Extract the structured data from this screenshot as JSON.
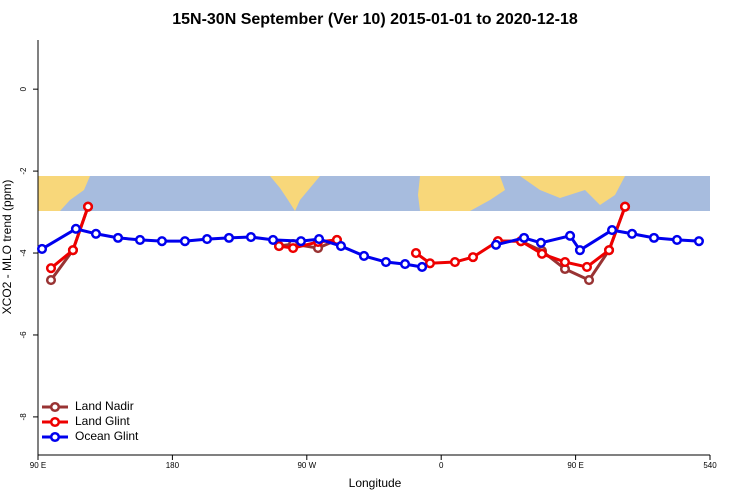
{
  "chart_data": {
    "type": "line",
    "title": "15N-30N September (Ver 10)   2015-01-01 to 2020-12-18",
    "x_label": "Longitude",
    "y_label": "XCO2 - MLO trend (ppm)",
    "xlim": [
      90,
      540
    ],
    "xticks": [
      {
        "value": 90,
        "label": "90 E"
      },
      180,
      {
        "value": 270,
        "label": "90 W"
      },
      {
        "value": 360,
        "label": "0"
      },
      {
        "value": 450,
        "label": "90 E"
      },
      540
    ],
    "ylim": [
      -8.93,
      1.2
    ],
    "yticks": [
      0,
      -2,
      -4,
      -6,
      -8
    ],
    "legend": "bottom-left",
    "series": [
      {
        "name": "Land Nadir",
        "color": "#993333",
        "x": [
          98.7,
          113.4,
          123.5,
          200,
          251.4,
          260.8,
          277.5,
          290.2,
          380,
          398,
          413.4,
          427.5,
          442.9,
          459,
          472.4,
          483.1
        ],
        "values": [
          -4.66,
          -3.93,
          -2.87,
          null,
          -3.83,
          -3.78,
          -3.88,
          -3.68,
          null,
          -3.71,
          -3.71,
          -3.95,
          -4.39,
          -4.66,
          -3.93,
          -2.87
        ]
      },
      {
        "name": "Land Glint",
        "color": "#ee0000",
        "x": [
          98.7,
          113.4,
          123.5,
          200,
          251.4,
          260.8,
          277.5,
          290.2,
          320,
          343.1,
          352.5,
          369.2,
          381.3,
          398,
          413.4,
          427.5,
          442.9,
          457.6,
          472.4,
          483.1
        ],
        "values": [
          -4.37,
          -3.93,
          -2.87,
          null,
          -3.83,
          -3.88,
          -3.73,
          -3.68,
          null,
          -4.0,
          -4.25,
          -4.22,
          -4.1,
          -3.71,
          -3.71,
          -4.02,
          -4.22,
          -4.34,
          -3.93,
          -2.87
        ]
      },
      {
        "name": "Ocean Glint",
        "color": "#0000ee",
        "x": [
          92.7,
          115.4,
          128.8,
          143.6,
          158.3,
          173,
          188.4,
          203.2,
          217.9,
          232.6,
          247.4,
          266.1,
          278.2,
          292.9,
          308.3,
          323,
          335.8,
          347.2,
          370,
          396.7,
          415.5,
          426.8,
          446.3,
          452.9,
          474.4,
          487.8,
          502.5,
          517.9,
          532.6
        ],
        "values": [
          -3.9,
          -3.41,
          -3.53,
          -3.63,
          -3.68,
          -3.71,
          -3.71,
          -3.66,
          -3.63,
          -3.61,
          -3.68,
          -3.71,
          -3.66,
          -3.83,
          -4.07,
          -4.22,
          -4.27,
          -4.34,
          null,
          -3.8,
          -3.63,
          -3.75,
          -3.58,
          -3.93,
          -3.44,
          -3.53,
          -3.63,
          -3.68,
          -3.71
        ]
      }
    ]
  }
}
